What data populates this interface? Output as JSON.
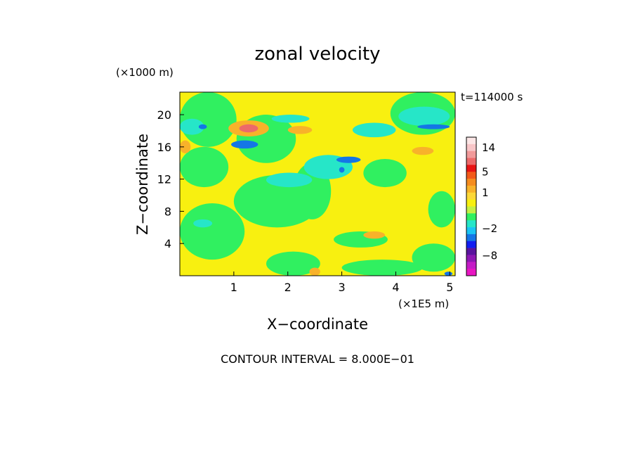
{
  "chart_data": {
    "type": "heatmap",
    "title": "zonal velocity",
    "xlabel": "X−coordinate",
    "ylabel": "Z−coordinate",
    "x_units": "(×1E5 m)",
    "y_units": "(×1000 m)",
    "time_label": "t=114000 s",
    "footer": "CONTOUR INTERVAL = 8.000E−01",
    "xlim": [
      0,
      5.1
    ],
    "ylim": [
      0,
      22.8
    ],
    "x_ticks": [
      {
        "value": 1,
        "label": "1"
      },
      {
        "value": 2,
        "label": "2"
      },
      {
        "value": 3,
        "label": "3"
      },
      {
        "value": 4,
        "label": "4"
      },
      {
        "value": 5,
        "label": "5"
      }
    ],
    "y_ticks": [
      {
        "value": 4,
        "label": "4"
      },
      {
        "value": 8,
        "label": "8"
      },
      {
        "value": 12,
        "label": "12"
      },
      {
        "value": 16,
        "label": "16"
      },
      {
        "value": 20,
        "label": "20"
      }
    ],
    "grid": false,
    "colorbar": {
      "colors": [
        "#fce6e6",
        "#f8c6c8",
        "#f19a9a",
        "#ec6a6a",
        "#e81414",
        "#f25a1a",
        "#f58c1e",
        "#f8b22a",
        "#fcd838",
        "#f8f010",
        "#c4f044",
        "#30f060",
        "#26e6c8",
        "#1ac4f4",
        "#1476e6",
        "#121ef0",
        "#5a149e",
        "#8e18b4",
        "#c41cc6",
        "#e816c2"
      ],
      "tick_labels": [
        {
          "text": "14",
          "at_band": 1
        },
        {
          "text": "5",
          "at_band": 4.5
        },
        {
          "text": "1",
          "at_band": 7.5
        },
        {
          "text": "−2",
          "at_band": 12.7
        },
        {
          "text": "−8",
          "at_band": 16.6
        }
      ]
    },
    "field_regions": [
      {
        "level": "green",
        "color": "#30f060",
        "x": [
          0.0,
          1.05
        ],
        "z": [
          16.0,
          22.8
        ]
      },
      {
        "level": "green",
        "color": "#30f060",
        "x": [
          1.05,
          2.15
        ],
        "z": [
          14.0,
          20.0
        ]
      },
      {
        "level": "green",
        "color": "#30f060",
        "x": [
          3.9,
          5.1
        ],
        "z": [
          17.5,
          22.8
        ]
      },
      {
        "level": "green",
        "color": "#30f060",
        "x": [
          1.0,
          2.6
        ],
        "z": [
          6.0,
          12.5
        ]
      },
      {
        "level": "green",
        "color": "#30f060",
        "x": [
          2.1,
          2.8
        ],
        "z": [
          7.0,
          14.0
        ]
      },
      {
        "level": "green",
        "color": "#30f060",
        "x": [
          0.0,
          1.2
        ],
        "z": [
          2.0,
          9.0
        ]
      },
      {
        "level": "green",
        "color": "#30f060",
        "x": [
          0.0,
          0.9
        ],
        "z": [
          11.0,
          16.0
        ]
      },
      {
        "level": "green",
        "color": "#30f060",
        "x": [
          3.4,
          4.2
        ],
        "z": [
          11.0,
          14.5
        ]
      },
      {
        "level": "green",
        "color": "#30f060",
        "x": [
          4.6,
          5.1
        ],
        "z": [
          6.0,
          10.5
        ]
      },
      {
        "level": "green",
        "color": "#30f060",
        "x": [
          1.6,
          2.6
        ],
        "z": [
          0.0,
          3.0
        ]
      },
      {
        "level": "green",
        "color": "#30f060",
        "x": [
          3.0,
          4.5
        ],
        "z": [
          0.0,
          2.0
        ]
      },
      {
        "level": "green",
        "color": "#30f060",
        "x": [
          4.3,
          5.1
        ],
        "z": [
          0.5,
          4.0
        ]
      },
      {
        "level": "green",
        "color": "#30f060",
        "x": [
          2.85,
          3.85
        ],
        "z": [
          3.5,
          5.5
        ]
      },
      {
        "level": "cyan",
        "color": "#26e6c8",
        "x": [
          1.6,
          2.45
        ],
        "z": [
          11.0,
          12.8
        ]
      },
      {
        "level": "cyan",
        "color": "#26e6c8",
        "x": [
          2.3,
          3.2
        ],
        "z": [
          12.0,
          15.0
        ]
      },
      {
        "level": "cyan",
        "color": "#26e6c8",
        "x": [
          3.2,
          4.0
        ],
        "z": [
          17.2,
          19.0
        ]
      },
      {
        "level": "cyan",
        "color": "#26e6c8",
        "x": [
          0.0,
          0.45
        ],
        "z": [
          17.5,
          19.5
        ]
      },
      {
        "level": "cyan",
        "color": "#26e6c8",
        "x": [
          1.7,
          2.4
        ],
        "z": [
          19.0,
          20.0
        ]
      },
      {
        "level": "cyan",
        "color": "#26e6c8",
        "x": [
          4.05,
          5.0
        ],
        "z": [
          18.6,
          21.0
        ]
      },
      {
        "level": "cyan",
        "color": "#26e6c8",
        "x": [
          0.25,
          0.6
        ],
        "z": [
          6.0,
          7.0
        ]
      },
      {
        "level": "orange",
        "color": "#f8b22a",
        "x": [
          0.9,
          1.65
        ],
        "z": [
          17.3,
          19.3
        ]
      },
      {
        "level": "orange",
        "color": "#f8b22a",
        "x": [
          2.0,
          2.45
        ],
        "z": [
          17.6,
          18.6
        ]
      },
      {
        "level": "orange",
        "color": "#f8b22a",
        "x": [
          0.0,
          0.2
        ],
        "z": [
          15.2,
          16.8
        ]
      },
      {
        "level": "orange",
        "color": "#f8b22a",
        "x": [
          4.3,
          4.7
        ],
        "z": [
          15.0,
          16.0
        ]
      },
      {
        "level": "orange",
        "color": "#f8b22a",
        "x": [
          2.4,
          2.6
        ],
        "z": [
          0.0,
          1.0
        ]
      },
      {
        "level": "orange",
        "color": "#f8b22a",
        "x": [
          3.4,
          3.8
        ],
        "z": [
          4.6,
          5.5
        ]
      },
      {
        "level": "red",
        "color": "#ec6a6a",
        "x": [
          1.1,
          1.45
        ],
        "z": [
          17.8,
          18.8
        ]
      },
      {
        "level": "blue",
        "color": "#1476e6",
        "x": [
          0.95,
          1.45
        ],
        "z": [
          15.8,
          16.8
        ]
      },
      {
        "level": "blue",
        "color": "#1476e6",
        "x": [
          2.9,
          3.35
        ],
        "z": [
          14.0,
          14.8
        ]
      },
      {
        "level": "blue",
        "color": "#1476e6",
        "x": [
          2.95,
          3.05
        ],
        "z": [
          12.8,
          13.5
        ]
      },
      {
        "level": "blue",
        "color": "#1476e6",
        "x": [
          4.4,
          5.0
        ],
        "z": [
          18.2,
          18.8
        ]
      },
      {
        "level": "blue",
        "color": "#1476e6",
        "x": [
          0.35,
          0.5
        ],
        "z": [
          18.2,
          18.8
        ]
      },
      {
        "level": "blue",
        "color": "#1476e6",
        "x": [
          4.9,
          5.05
        ],
        "z": [
          0.0,
          0.5
        ]
      }
    ]
  }
}
